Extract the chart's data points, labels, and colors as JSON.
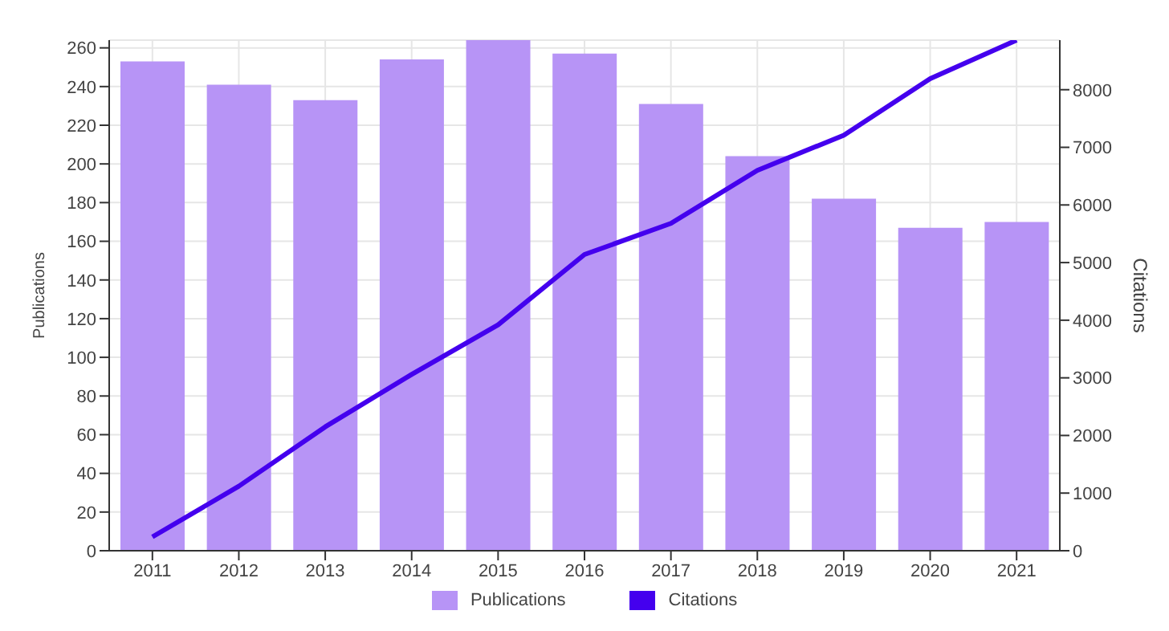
{
  "chart_data": {
    "type": "bar",
    "categories": [
      "2011",
      "2012",
      "2013",
      "2014",
      "2015",
      "2016",
      "2017",
      "2018",
      "2019",
      "2020",
      "2021"
    ],
    "series": [
      {
        "name": "Publications",
        "color": "#b794f6",
        "values": [
          253,
          241,
          233,
          254,
          264,
          257,
          231,
          204,
          182,
          167,
          170
        ]
      },
      {
        "name": "Citations",
        "type": "line",
        "axis": "y2",
        "color": "#4400ee",
        "values": [
          240,
          1120,
          2150,
          3060,
          3920,
          5140,
          5680,
          6600,
          7210,
          8190,
          8860
        ]
      }
    ],
    "ylabel": "Publications",
    "y2label": "Citations",
    "ylim": [
      0,
      264
    ],
    "yticks": [
      0,
      20,
      40,
      60,
      80,
      100,
      120,
      140,
      160,
      180,
      200,
      220,
      240,
      260
    ],
    "y2lim": [
      0,
      8860
    ],
    "y2ticks": [
      0,
      1000,
      2000,
      3000,
      4000,
      5000,
      6000,
      7000,
      8000
    ],
    "grid": true,
    "legend": "bottom",
    "marker": "none",
    "line_style": "solid"
  }
}
